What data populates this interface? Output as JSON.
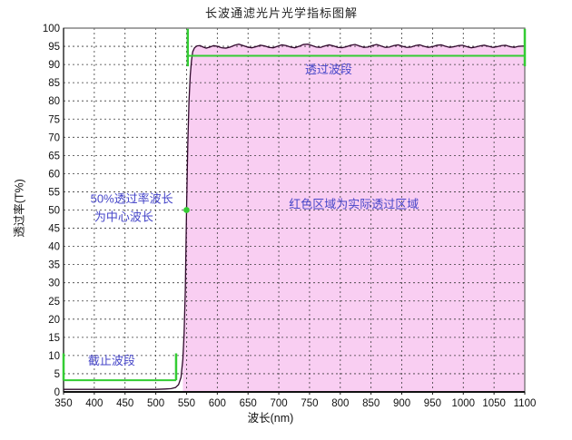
{
  "chart_data": {
    "type": "line",
    "title": "长波通滤光片光学指标图解",
    "xlabel": "波长(nm)",
    "ylabel": "透过率(T%)",
    "xlim": [
      350,
      1100
    ],
    "xtick_step": 50,
    "ylim": [
      0,
      100
    ],
    "ytick_step": 5,
    "grid": true,
    "legend": "none",
    "colors": {
      "fill_pink": "#f9cef2",
      "curve": "#30082c",
      "annotation_green": "#33cc33",
      "annotation_blue": "#4646c8",
      "gridline": "#3a3a3a",
      "border": "#666666",
      "axis": "#111111"
    },
    "series": [
      {
        "name": "transmittance-curve",
        "points": [
          [
            350,
            0.7
          ],
          [
            380,
            0.7
          ],
          [
            410,
            0.7
          ],
          [
            440,
            0.7
          ],
          [
            470,
            0.7
          ],
          [
            500,
            0.7
          ],
          [
            515,
            0.8
          ],
          [
            525,
            0.9
          ],
          [
            532,
            1.2
          ],
          [
            537,
            2
          ],
          [
            541,
            4
          ],
          [
            544,
            9
          ],
          [
            546,
            16
          ],
          [
            548,
            28
          ],
          [
            550,
            50
          ],
          [
            552,
            68
          ],
          [
            554,
            80
          ],
          [
            556,
            87
          ],
          [
            558,
            91
          ],
          [
            560,
            93.5
          ],
          [
            563,
            94.6
          ],
          [
            567,
            95.1
          ],
          [
            572,
            95.2
          ],
          [
            577,
            94.8
          ],
          [
            582,
            94.5
          ],
          [
            588,
            94.8
          ],
          [
            594,
            95.2
          ],
          [
            600,
            95.0
          ],
          [
            607,
            94.6
          ],
          [
            614,
            94.5
          ],
          [
            621,
            94.8
          ],
          [
            628,
            95.3
          ],
          [
            635,
            95.6
          ],
          [
            642,
            95.2
          ],
          [
            649,
            94.8
          ],
          [
            656,
            94.6
          ],
          [
            663,
            94.9
          ],
          [
            670,
            95.3
          ],
          [
            677,
            95.1
          ],
          [
            684,
            94.7
          ],
          [
            691,
            94.6
          ],
          [
            698,
            95.0
          ],
          [
            705,
            95.4
          ],
          [
            712,
            95.2
          ],
          [
            719,
            94.8
          ],
          [
            726,
            94.6
          ],
          [
            733,
            95.0
          ],
          [
            740,
            95.5
          ],
          [
            747,
            95.6
          ],
          [
            754,
            95.2
          ],
          [
            761,
            94.8
          ],
          [
            768,
            94.7
          ],
          [
            775,
            95.1
          ],
          [
            782,
            95.4
          ],
          [
            789,
            95.1
          ],
          [
            796,
            94.7
          ],
          [
            803,
            94.6
          ],
          [
            810,
            94.9
          ],
          [
            817,
            95.3
          ],
          [
            824,
            95.5
          ],
          [
            831,
            95.1
          ],
          [
            838,
            94.7
          ],
          [
            845,
            94.8
          ],
          [
            852,
            95.2
          ],
          [
            859,
            95.5
          ],
          [
            866,
            95.1
          ],
          [
            873,
            94.7
          ],
          [
            880,
            94.8
          ],
          [
            887,
            95.2
          ],
          [
            894,
            95.4
          ],
          [
            901,
            95.0
          ],
          [
            908,
            94.7
          ],
          [
            915,
            94.8
          ],
          [
            922,
            95.2
          ],
          [
            929,
            95.4
          ],
          [
            936,
            95.0
          ],
          [
            943,
            94.7
          ],
          [
            950,
            94.9
          ],
          [
            957,
            95.3
          ],
          [
            964,
            95.4
          ],
          [
            971,
            95.0
          ],
          [
            978,
            94.7
          ],
          [
            985,
            94.9
          ],
          [
            992,
            95.2
          ],
          [
            999,
            95.3
          ],
          [
            1006,
            94.9
          ],
          [
            1013,
            94.6
          ],
          [
            1020,
            94.8
          ],
          [
            1027,
            95.1
          ],
          [
            1034,
            95.3
          ],
          [
            1041,
            95.0
          ],
          [
            1048,
            94.7
          ],
          [
            1055,
            94.9
          ],
          [
            1062,
            95.2
          ],
          [
            1069,
            95.3
          ],
          [
            1076,
            94.9
          ],
          [
            1083,
            94.7
          ],
          [
            1090,
            95.0
          ],
          [
            1100,
            95.1
          ]
        ]
      }
    ],
    "fill_region": {
      "from_nm": 544,
      "to_nm": 1100
    },
    "annotations": {
      "pass_band": {
        "label": "透过波段",
        "x1_nm": 552,
        "x2_nm": 1100,
        "line_T": 92.4,
        "tick_top_T": 99.8,
        "tick_bottom_T": 89.5,
        "label_x_nm": 781,
        "label_T": 87.5
      },
      "cutoff_band": {
        "label": "截止波段",
        "x1_nm": 350,
        "x2_nm": 533,
        "line_T": 3.2,
        "tick_top_T": 10.6,
        "label_x_nm": 428,
        "label_T": 7.5
      },
      "center_wavelength": {
        "label_line1": "50%透过率波长",
        "label_line2": "为中心波长",
        "line1_x_nm": 461,
        "line1_T": 52.0,
        "line2_x_nm": 448,
        "line2_T": 47.0,
        "point_nm": 550,
        "point_T": 50
      },
      "region_note": {
        "label": "红色区域为实际透过区域",
        "x_nm": 822,
        "T": 50.5
      }
    }
  }
}
